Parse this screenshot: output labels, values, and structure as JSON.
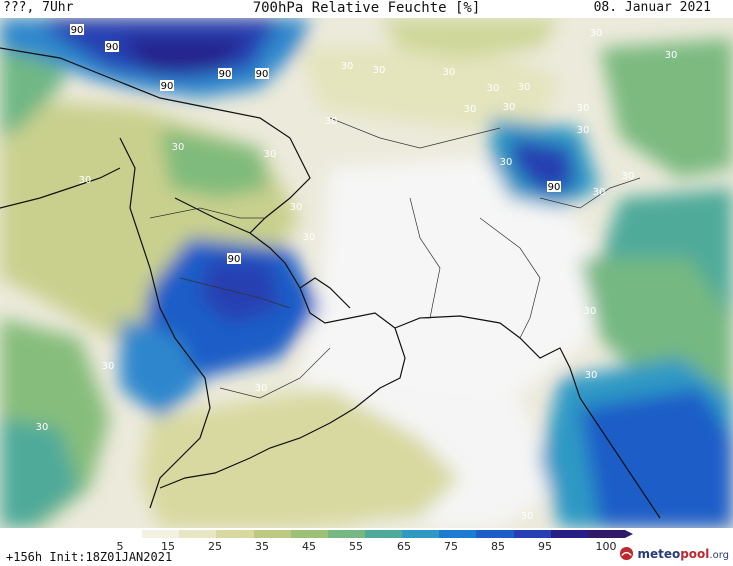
{
  "header": {
    "left": "???, 7Uhr",
    "title": "700hPa Relative Feuchte [%]",
    "date": "08. Januar 2021"
  },
  "footer": {
    "run_info": "+156h Init:18Z01JAN2021",
    "logo_brand_a": "meteo",
    "logo_brand_b": "pool",
    "logo_tld": ".org"
  },
  "legend": {
    "unit": "%",
    "ticks": [
      "5",
      "15",
      "25",
      "35",
      "45",
      "55",
      "65",
      "75",
      "85",
      "95",
      "100"
    ],
    "colors": [
      "#ffffff",
      "#f3f1e1",
      "#e8e7c3",
      "#d8d9a0",
      "#bdc980",
      "#9cc075",
      "#75b882",
      "#4faa9a",
      "#2f99c4",
      "#1d7bd1",
      "#1f5dc7",
      "#263fb2",
      "#281f85",
      "#311a68"
    ]
  },
  "map": {
    "region": "Middle East / Arabian Peninsula / South Asia",
    "field": "relative humidity 700hPa",
    "contour_labels": [
      "90",
      "90",
      "90",
      "90",
      "90",
      "90",
      "90",
      "90",
      "30",
      "30",
      "30",
      "30",
      "30",
      "30",
      "30",
      "30",
      "30",
      "30",
      "30",
      "30",
      "30",
      "30",
      "30",
      "30",
      "30",
      "30",
      "30",
      "30",
      "30",
      "30",
      "30",
      "30",
      "30",
      "30",
      "30",
      "30"
    ]
  }
}
